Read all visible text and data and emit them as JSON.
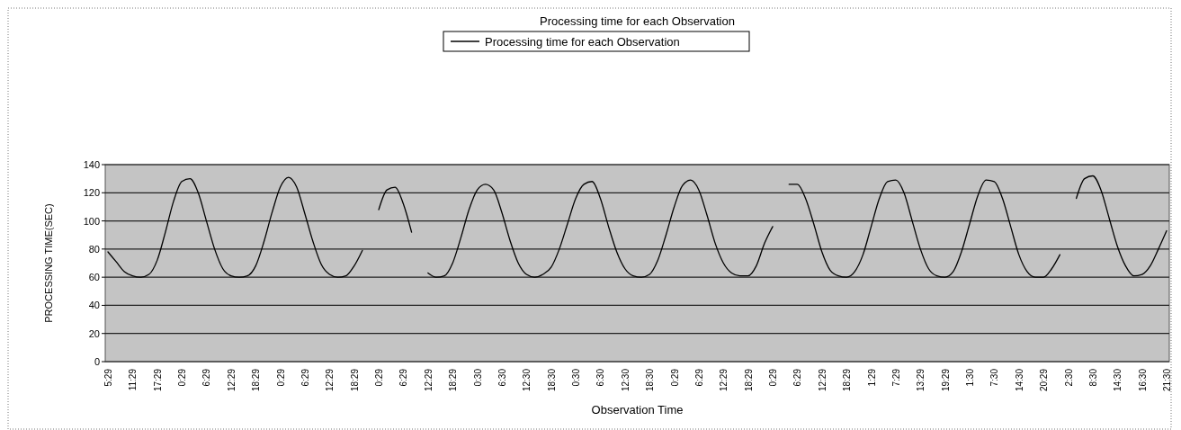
{
  "chart_data": {
    "type": "line",
    "title": "Processing time for each Observation",
    "xlabel": "Observation Time",
    "ylabel": "PROCESSING TIME(SEC)",
    "categories": [
      "5:29",
      null,
      null,
      "11:29",
      null,
      null,
      "17:29",
      null,
      null,
      "0:29",
      null,
      null,
      "6:29",
      null,
      null,
      "12:29",
      null,
      null,
      "18:29",
      null,
      null,
      "0:29",
      null,
      null,
      "6:29",
      null,
      null,
      "12:29",
      null,
      null,
      "18:29",
      null,
      null,
      "0:29",
      null,
      null,
      "6:29",
      null,
      null,
      "12:29",
      null,
      null,
      "18:29",
      null,
      null,
      "0:30",
      null,
      null,
      "6:30",
      null,
      null,
      "12:30",
      null,
      null,
      "18:30",
      null,
      null,
      "0:30",
      null,
      null,
      "6:30",
      null,
      null,
      "12:30",
      null,
      null,
      "18:30",
      null,
      null,
      "0:29",
      null,
      null,
      "6:29",
      null,
      null,
      "12:29",
      null,
      null,
      "18:29",
      null,
      null,
      "0:29",
      null,
      null,
      "6:29",
      null,
      null,
      "12:29",
      null,
      null,
      "18:29",
      null,
      null,
      "1:29",
      null,
      null,
      "7:29",
      null,
      null,
      "13:29",
      null,
      null,
      "19:29",
      null,
      null,
      "1:30",
      null,
      null,
      "7:30",
      null,
      null,
      "14:30",
      null,
      null,
      "20:29",
      null,
      null,
      "2:30",
      null,
      null,
      "8:30",
      null,
      null,
      "14:30",
      null,
      null,
      "16:30",
      null,
      null,
      "21:30"
    ],
    "series": [
      {
        "name": "Processing time for each Observation",
        "color": "#000000",
        "values": [
          78,
          71,
          64,
          61,
          60,
          62,
          72,
          92,
          114,
          128,
          130,
          120,
          100,
          80,
          66,
          61,
          60,
          61,
          68,
          85,
          106,
          124,
          131,
          124,
          105,
          85,
          69,
          62,
          60,
          61,
          68,
          79,
          null,
          108,
          122,
          124,
          112,
          92,
          null,
          63,
          60,
          61,
          70,
          88,
          108,
          122,
          126,
          122,
          106,
          86,
          70,
          62,
          60,
          62,
          67,
          80,
          98,
          116,
          126,
          128,
          116,
          96,
          78,
          66,
          61,
          60,
          62,
          72,
          90,
          110,
          125,
          129,
          122,
          104,
          84,
          70,
          63,
          61,
          61,
          68,
          84,
          96,
          null,
          126,
          126,
          116,
          98,
          78,
          65,
          61,
          60,
          64,
          76,
          96,
          116,
          128,
          129,
          120,
          100,
          80,
          66,
          61,
          60,
          64,
          78,
          98,
          118,
          129,
          128,
          116,
          96,
          76,
          64,
          60,
          60,
          66,
          76,
          null,
          116,
          130,
          132,
          122,
          102,
          82,
          68,
          61,
          62,
          68,
          80,
          93
        ]
      }
    ],
    "ylim": [
      0,
      140
    ],
    "yticks": [
      0,
      20,
      40,
      60,
      80,
      100,
      120,
      140
    ],
    "grid": "y",
    "legend": "top",
    "marker": "none",
    "line_style": "solid"
  }
}
